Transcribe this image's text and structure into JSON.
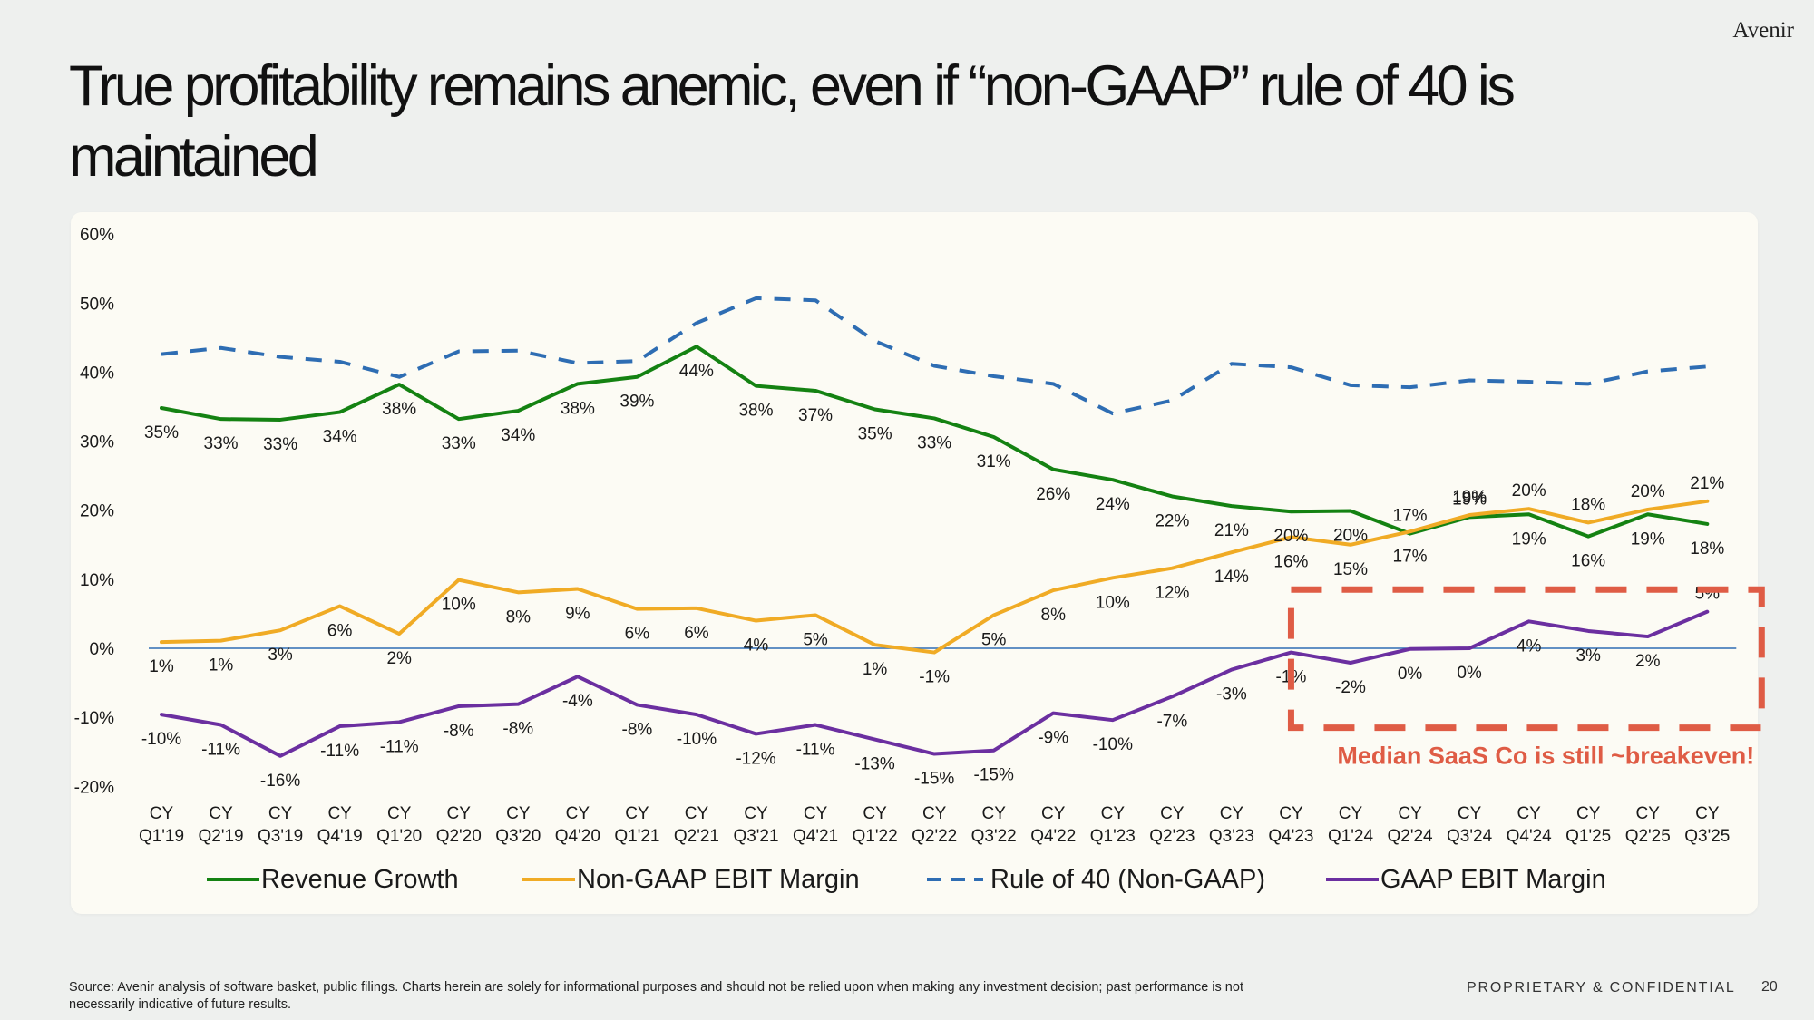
{
  "brand": "Avenir",
  "title": "True profitability remains anemic, even if “non-GAAP” rule of 40 is maintained",
  "footer": {
    "source": "Source: Avenir analysis of software basket, public filings. Charts herein are solely for informational purposes and should not be relied upon when making any investment decision; past performance is not necessarily indicative of future results.",
    "confidential": "PROPRIETARY & CONFIDENTIAL",
    "page": "20"
  },
  "colors": {
    "revenue": "#148212",
    "nongaap": "#f0ab25",
    "rule40": "#2e6db3",
    "gaap": "#6b2fa0",
    "callout": "#df5c45",
    "zero_line": "#2e6db3"
  },
  "chart_data": {
    "type": "line",
    "categories": [
      "CY Q1'19",
      "CY Q2'19",
      "CY Q3'19",
      "CY Q4'19",
      "CY Q1'20",
      "CY Q2'20",
      "CY Q3'20",
      "CY Q4'20",
      "CY Q1'21",
      "CY Q2'21",
      "CY Q3'21",
      "CY Q4'21",
      "CY Q1'22",
      "CY Q2'22",
      "CY Q3'22",
      "CY Q4'22",
      "CY Q1'23",
      "CY Q2'23",
      "CY Q3'23",
      "CY Q4'23",
      "CY Q1'24",
      "CY Q2'24",
      "CY Q3'24",
      "CY Q4'24",
      "CY Q1'25",
      "CY Q2'25",
      "CY Q3'25"
    ],
    "ylim": [
      -20,
      60
    ],
    "yticks": [
      "-20%",
      "-10%",
      "0%",
      "10%",
      "20%",
      "30%",
      "40%",
      "50%",
      "60%"
    ],
    "series": [
      {
        "name": "Revenue Growth",
        "color_key": "revenue",
        "dashed": false,
        "values": [
          34.8,
          33.2,
          33.1,
          34.2,
          38.2,
          33.2,
          34.4,
          38.3,
          39.3,
          43.7,
          38.0,
          37.3,
          34.6,
          33.3,
          30.6,
          25.9,
          24.4,
          22.0,
          20.6,
          19.8,
          19.9,
          16.6,
          19.0,
          19.4,
          16.2,
          19.4,
          18.0
        ],
        "labels": [
          "35%",
          "33%",
          "33%",
          "34%",
          "38%",
          "33%",
          "34%",
          "38%",
          "39%",
          "44%",
          "38%",
          "37%",
          "35%",
          "33%",
          "31%",
          "26%",
          "24%",
          "22%",
          "21%",
          "20%",
          "20%",
          "17%",
          "19%",
          "19%",
          "16%",
          "19%",
          "18%"
        ],
        "label_pos": [
          "below",
          "below",
          "below",
          "below",
          "below",
          "below",
          "below",
          "below",
          "below",
          "below",
          "below",
          "below",
          "below",
          "below",
          "below",
          "below",
          "below",
          "below",
          "below",
          "below",
          "below",
          "above",
          "above",
          "below",
          "below",
          "below",
          "below"
        ]
      },
      {
        "name": "Non-GAAP EBIT Margin",
        "color_key": "nongaap",
        "dashed": false,
        "values": [
          0.9,
          1.1,
          2.6,
          6.1,
          2.1,
          9.9,
          8.1,
          8.6,
          5.7,
          5.8,
          4.0,
          4.8,
          0.5,
          -0.6,
          4.8,
          8.4,
          10.2,
          11.6,
          13.9,
          16.1,
          15.0,
          16.9,
          19.3,
          20.2,
          18.2,
          20.1,
          21.3
        ],
        "labels": [
          "1%",
          "1%",
          "3%",
          "6%",
          "2%",
          "10%",
          "8%",
          "9%",
          "6%",
          "6%",
          "4%",
          "5%",
          "1%",
          "-1%",
          "5%",
          "8%",
          "10%",
          "12%",
          "14%",
          "16%",
          "15%",
          "17%",
          "19%",
          "20%",
          "18%",
          "20%",
          "21%"
        ],
        "label_pos": [
          "below",
          "below",
          "below",
          "below",
          "below",
          "below",
          "below",
          "below",
          "below",
          "below",
          "below",
          "below",
          "below",
          "below",
          "below",
          "below",
          "below",
          "below",
          "below",
          "below",
          "below",
          "below",
          "above",
          "above",
          "above",
          "above",
          "above"
        ]
      },
      {
        "name": "Rule of 40 (Non-GAAP)",
        "color_key": "rule40",
        "dashed": true,
        "values": [
          42.6,
          43.5,
          42.2,
          41.5,
          39.3,
          43.0,
          43.1,
          41.3,
          41.6,
          47.1,
          50.7,
          50.4,
          44.5,
          40.9,
          39.4,
          38.3,
          34.0,
          35.9,
          41.2,
          40.7,
          38.1,
          37.8,
          38.8,
          38.6,
          38.3,
          40.1,
          40.8
        ],
        "labels": null
      },
      {
        "name": "GAAP EBIT Margin",
        "color_key": "gaap",
        "dashed": false,
        "values": [
          -9.6,
          -11.1,
          -15.6,
          -11.3,
          -10.7,
          -8.4,
          -8.1,
          -4.1,
          -8.2,
          -9.6,
          -12.4,
          -11.1,
          -13.2,
          -15.3,
          -14.8,
          -9.4,
          -10.4,
          -7.0,
          -3.1,
          -0.6,
          -2.1,
          -0.1,
          0.0,
          3.9,
          2.5,
          1.7,
          5.3
        ],
        "labels": [
          "-10%",
          "-11%",
          "-16%",
          "-11%",
          "-11%",
          "-8%",
          "-8%",
          "-4%",
          "-8%",
          "-10%",
          "-12%",
          "-11%",
          "-13%",
          "-15%",
          "-15%",
          "-9%",
          "-10%",
          "-7%",
          "-3%",
          "-1%",
          "-2%",
          "0%",
          "0%",
          "4%",
          "3%",
          "2%",
          "5%"
        ],
        "label_pos": [
          "below",
          "below",
          "below",
          "below",
          "below",
          "below",
          "below",
          "below",
          "below",
          "below",
          "below",
          "below",
          "below",
          "below",
          "below",
          "below",
          "below",
          "below",
          "below",
          "below",
          "below",
          "below",
          "below",
          "below",
          "below",
          "below",
          "above"
        ]
      }
    ],
    "annotation": {
      "text": "Median SaaS Co is still ~breakeven!",
      "from_category": "CY Q4'23",
      "to_category": "CY Q3'25",
      "y_range": [
        -11.5,
        8.5
      ]
    },
    "legend_position": "bottom",
    "grid": false
  }
}
